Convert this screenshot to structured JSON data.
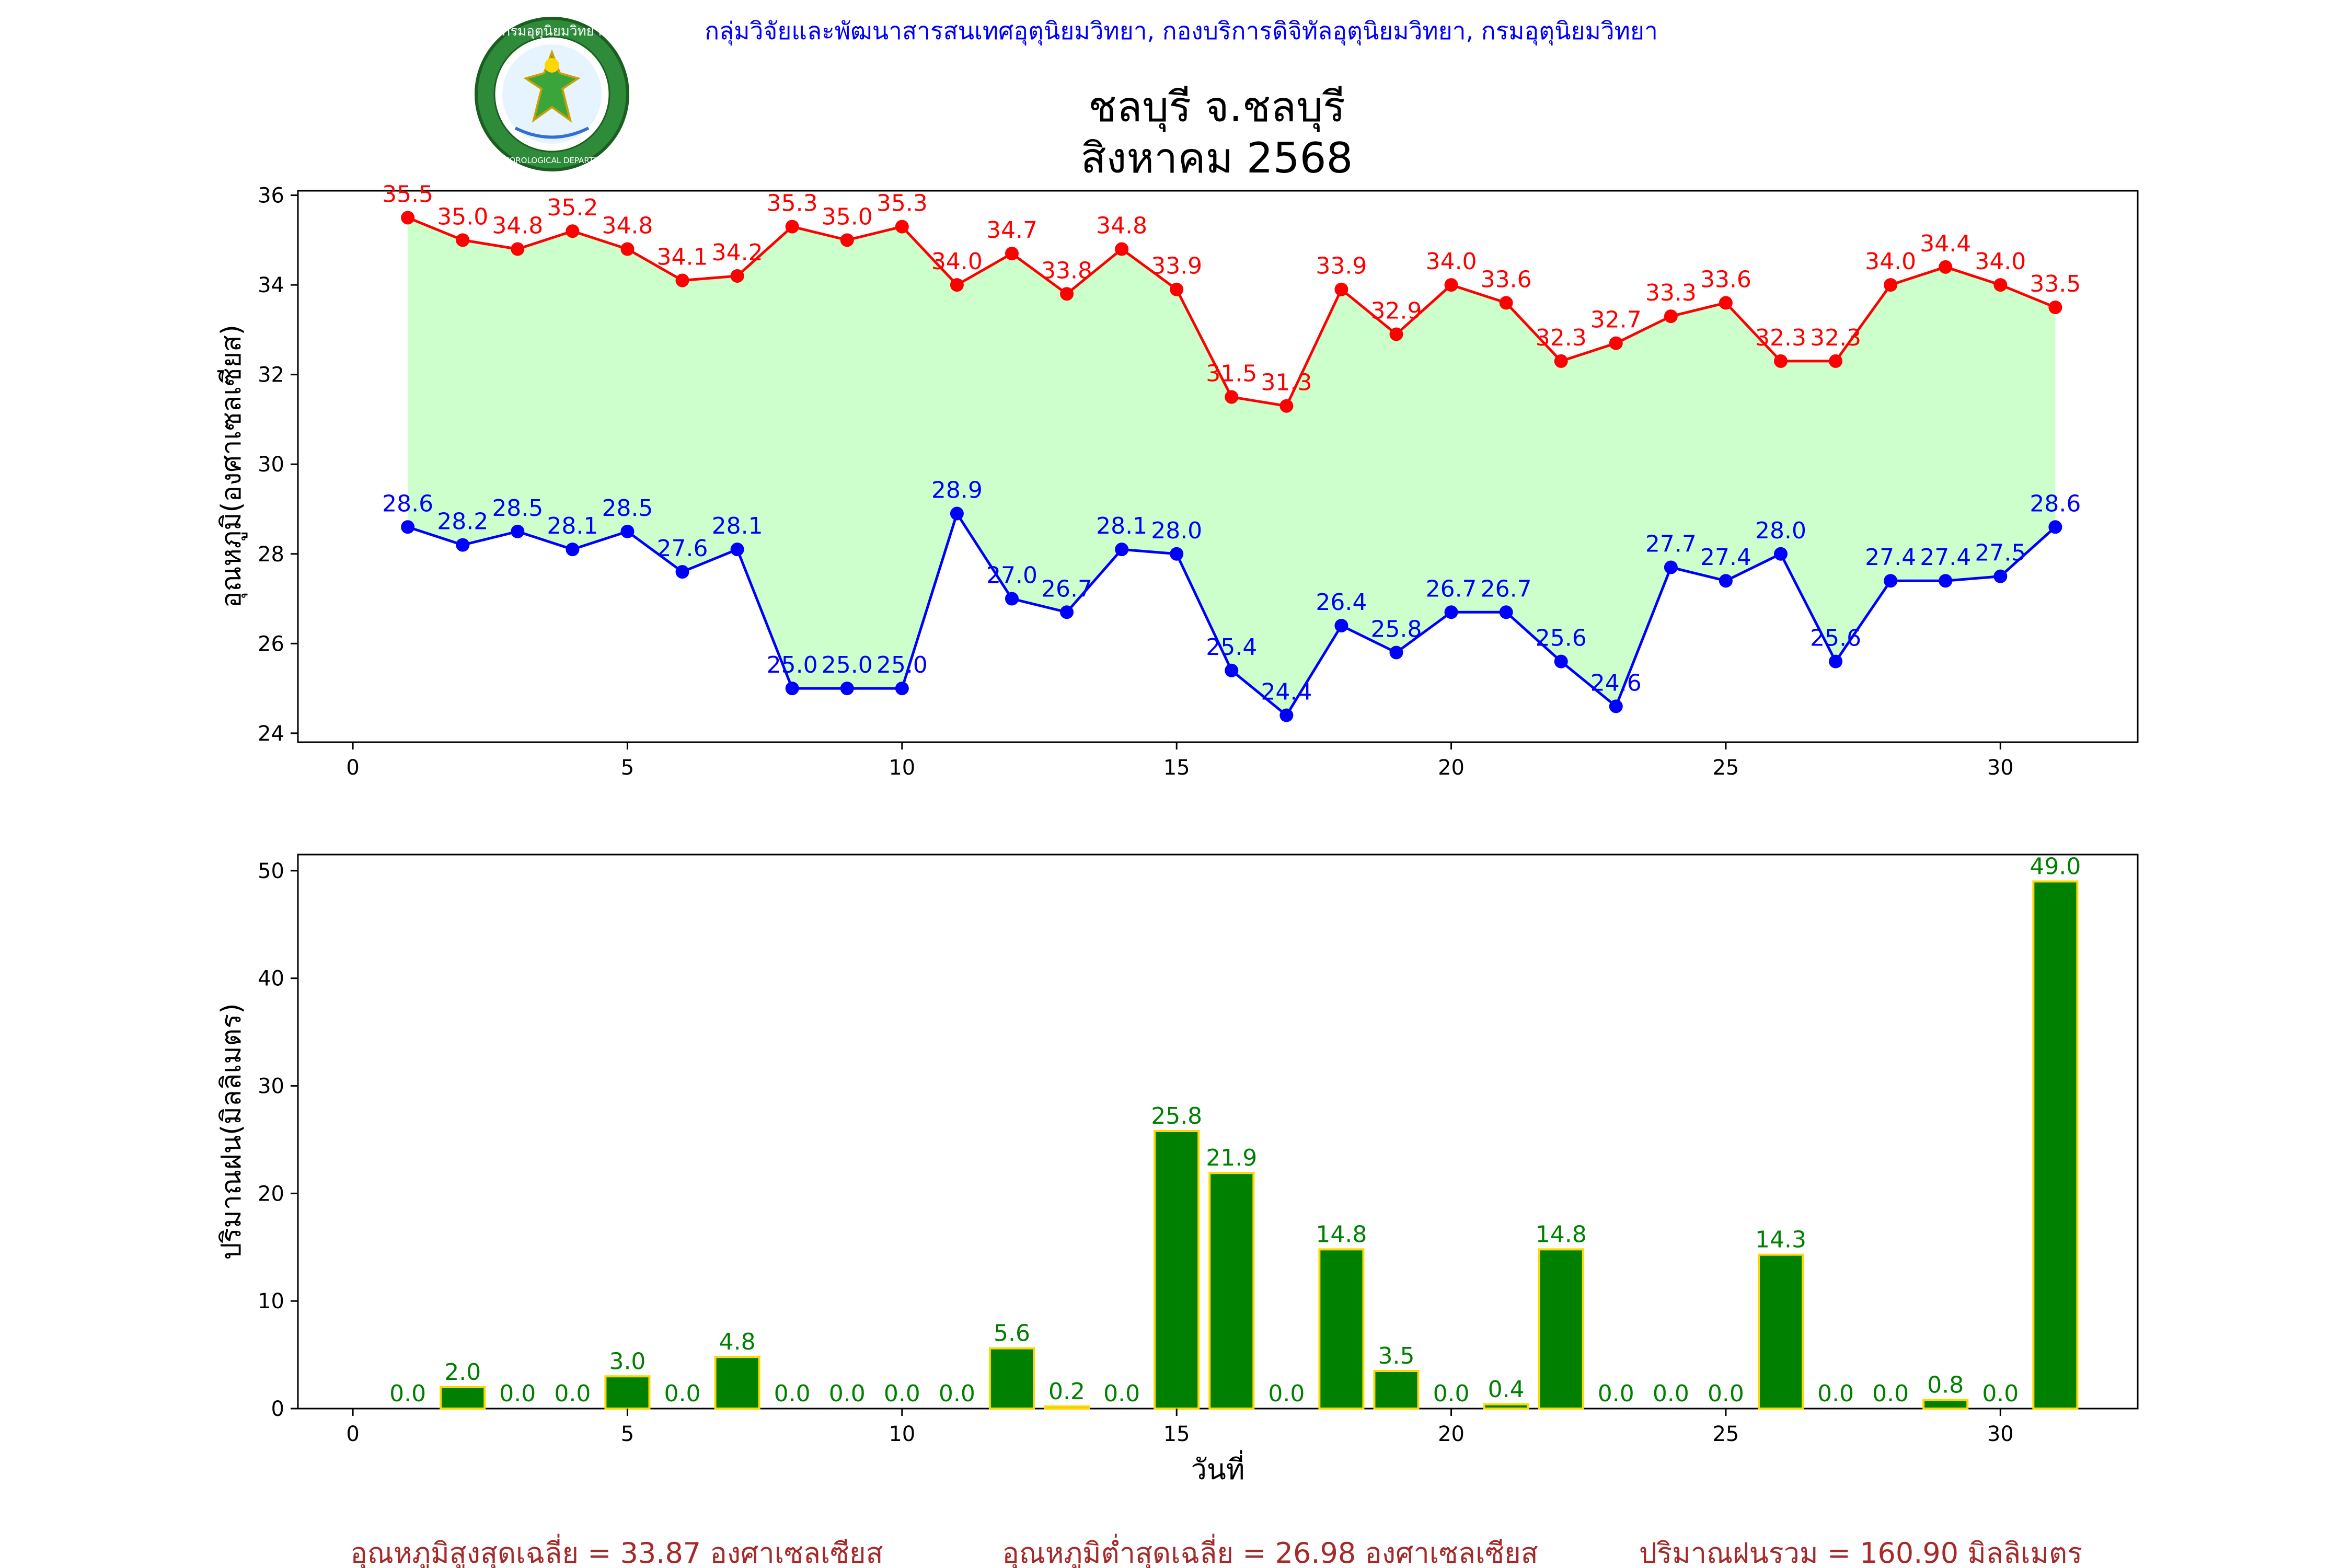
{
  "header": {
    "agency": "กลุ่มวิจัยและพัฒนาสารสนเทศอุตุนิยมวิทยา, กองบริการดิจิทัลอุตุนิยมวิทยา, กรมอุตุนิยมวิทยา",
    "title_line1": "ชลบุรี จ.ชลบุรี",
    "title_line2": "สิงหาคม 2568",
    "logo_text_top": "กรมอุตุนิยมวิทยา",
    "logo_text_bottom": "METEOROLOGICAL DEPARTMENT"
  },
  "chart_data": [
    {
      "type": "line",
      "ylabel": "อุณหภูมิ(องศาเซลเซียส)",
      "xlim": [
        -1,
        32.5
      ],
      "ylim": [
        23.8,
        36.1
      ],
      "xticks": [
        0,
        5,
        10,
        15,
        20,
        25,
        30
      ],
      "yticks": [
        24,
        26,
        28,
        30,
        32,
        34,
        36
      ],
      "fill_between": true,
      "x": [
        1,
        2,
        3,
        4,
        5,
        6,
        7,
        8,
        9,
        10,
        11,
        12,
        13,
        14,
        15,
        16,
        17,
        18,
        19,
        20,
        21,
        22,
        23,
        24,
        25,
        26,
        27,
        28,
        29,
        30,
        31
      ],
      "series": [
        {
          "key": "max",
          "color": "#ff0000",
          "values": [
            35.5,
            35.0,
            34.8,
            35.2,
            34.8,
            34.1,
            34.2,
            35.3,
            35.0,
            35.3,
            34.0,
            34.7,
            33.8,
            34.8,
            33.9,
            31.5,
            31.3,
            33.9,
            32.9,
            34.0,
            33.6,
            32.3,
            32.7,
            33.3,
            33.6,
            32.3,
            32.3,
            34.0,
            34.4,
            34.0,
            33.5
          ]
        },
        {
          "key": "min",
          "color": "#0000ff",
          "values": [
            28.6,
            28.2,
            28.5,
            28.1,
            28.5,
            27.6,
            28.1,
            25.0,
            25.0,
            25.0,
            28.9,
            27.0,
            26.7,
            28.1,
            28.0,
            25.4,
            24.4,
            26.4,
            25.8,
            26.7,
            26.7,
            25.6,
            24.6,
            27.7,
            27.4,
            28.0,
            25.6,
            27.4,
            27.4,
            27.5,
            28.6
          ]
        }
      ],
      "fill_color": "#ccffcc"
    },
    {
      "type": "bar",
      "ylabel": "ปริมาณฝน(มิลลิเมตร)",
      "xlabel": "วันที่",
      "xlim": [
        -1,
        32.5
      ],
      "ylim": [
        0,
        51.5
      ],
      "xticks": [
        0,
        5,
        10,
        15,
        20,
        25,
        30
      ],
      "yticks": [
        0,
        10,
        20,
        30,
        40,
        50
      ],
      "bar_color": "#008000",
      "edge_color": "#ffd700",
      "label_color": "#008000",
      "x": [
        1,
        2,
        3,
        4,
        5,
        6,
        7,
        8,
        9,
        10,
        11,
        12,
        13,
        14,
        15,
        16,
        17,
        18,
        19,
        20,
        21,
        22,
        23,
        24,
        25,
        26,
        27,
        28,
        29,
        30,
        31
      ],
      "values": [
        0.0,
        2.0,
        0.0,
        0.0,
        3.0,
        0.0,
        4.8,
        0.0,
        0.0,
        0.0,
        0.0,
        5.6,
        0.2,
        0.0,
        25.8,
        21.9,
        0.0,
        14.8,
        3.5,
        0.0,
        0.4,
        14.8,
        0.0,
        0.0,
        0.0,
        14.3,
        0.0,
        0.0,
        0.8,
        0.0,
        49.0
      ]
    }
  ],
  "summary": {
    "avg_max": "อุณหภูมิสูงสุดเฉลี่ย = 33.87 องศาเซลเซียส",
    "avg_min": "อุณหภูมิต่ำสุดเฉลี่ย = 26.98 องศาเซลเซียส",
    "total_rain": "ปริมาณฝนรวม = 160.90 มิลลิเมตร",
    "color": "#a52a2a"
  }
}
